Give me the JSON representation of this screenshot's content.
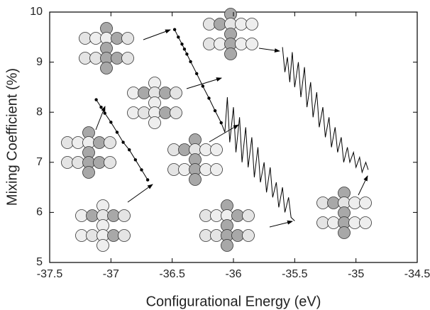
{
  "chart_data": {
    "type": "line",
    "xlabel": "Configurational Energy (eV)",
    "ylabel": "Mixing Coefficient (%)",
    "xlim": [
      -37.5,
      -34.5
    ],
    "xticks": [
      -37.5,
      -37,
      -36.5,
      -36,
      -35.5,
      -35,
      -34.5
    ],
    "ylim": [
      5,
      10
    ],
    "yticks": [
      5,
      6,
      7,
      8,
      9,
      10
    ],
    "series": [
      {
        "color": "#000000",
        "markers": true,
        "x": [
          -37.12,
          -37.08,
          -37.05,
          -37.0,
          -36.95,
          -36.9,
          -36.85,
          -36.8,
          -36.75,
          -36.7
        ],
        "values": [
          8.25,
          8.1,
          7.98,
          7.8,
          7.6,
          7.4,
          7.25,
          7.05,
          6.85,
          6.65
        ]
      },
      {
        "color": "#000000",
        "markers": true,
        "x": [
          -36.48,
          -36.45,
          -36.42,
          -36.4,
          -36.38,
          -36.35,
          -36.3,
          -36.25,
          -36.2,
          -36.15,
          -36.1
        ],
        "values": [
          9.65,
          9.5,
          9.36,
          9.26,
          9.16,
          9.01,
          8.77,
          8.52,
          8.28,
          8.03,
          7.79
        ]
      },
      {
        "color": "#000000",
        "markers": false,
        "x": [
          -36.1,
          -36.07,
          -36.05,
          -36.03,
          -36.0,
          -35.98,
          -35.95,
          -35.93,
          -35.9,
          -35.88,
          -35.85,
          -35.83,
          -35.8,
          -35.78,
          -35.75,
          -35.73,
          -35.7,
          -35.68,
          -35.65,
          -35.63,
          -35.6,
          -35.58,
          -35.55,
          -35.53,
          -35.5
        ],
        "values": [
          7.79,
          7.6,
          8.3,
          7.4,
          8.1,
          7.2,
          7.9,
          7.0,
          7.7,
          6.9,
          7.5,
          6.7,
          7.3,
          6.6,
          7.0,
          6.4,
          6.9,
          6.3,
          6.6,
          6.1,
          6.5,
          6.0,
          6.3,
          5.9,
          5.83
        ]
      },
      {
        "color": "#000000",
        "markers": false,
        "x": [
          -35.6,
          -35.58,
          -35.56,
          -35.54,
          -35.52,
          -35.5,
          -35.47,
          -35.45,
          -35.42,
          -35.4,
          -35.37,
          -35.35,
          -35.32,
          -35.3,
          -35.27,
          -35.25,
          -35.22,
          -35.2,
          -35.17,
          -35.15,
          -35.12,
          -35.1,
          -35.07,
          -35.05,
          -35.02,
          -35.0,
          -34.97,
          -34.95,
          -34.92,
          -34.9
        ],
        "values": [
          9.3,
          8.8,
          9.1,
          8.6,
          9.2,
          8.5,
          9.0,
          8.3,
          8.9,
          8.1,
          8.6,
          7.9,
          8.4,
          7.7,
          8.1,
          7.5,
          7.9,
          7.3,
          7.7,
          7.2,
          7.5,
          7.0,
          7.3,
          7.0,
          7.2,
          6.9,
          7.1,
          6.8,
          7.0,
          6.85
        ]
      }
    ]
  }
}
